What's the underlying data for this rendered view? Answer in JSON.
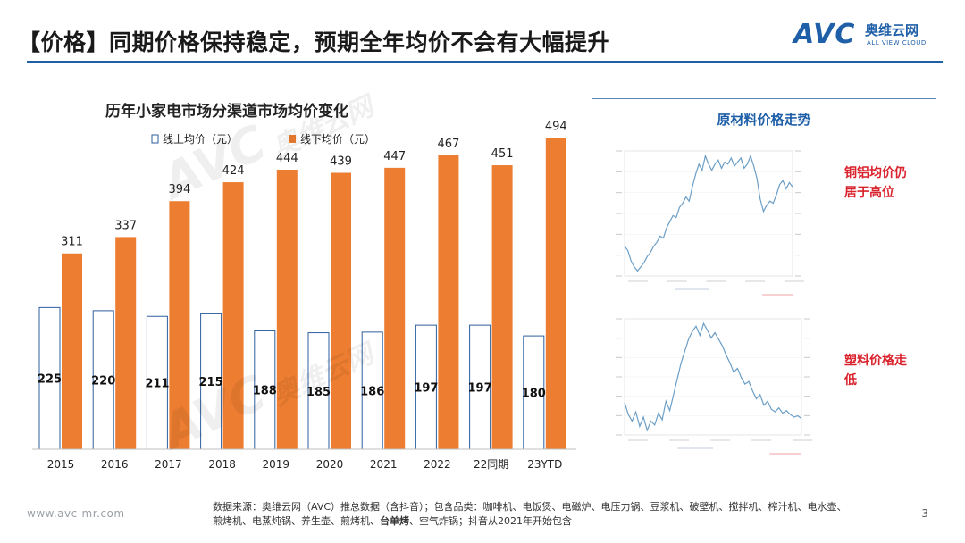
{
  "header": {
    "title": "【价格】同期价格保持稳定，预期全年均价不会有大幅提升"
  },
  "logo": {
    "mark": "AVC",
    "name_cn": "奥维云网",
    "name_en": "ALL VIEW CLOUD"
  },
  "watermark": {
    "mark": "AVC",
    "name_cn": "奥维云网",
    "name_en": "ALL VIEW CLOUD"
  },
  "chart_data": [
    {
      "type": "bar",
      "title": "历年小家电市场分渠道市场均价变化",
      "categories": [
        "2015",
        "2016",
        "2017",
        "2018",
        "2019",
        "2020",
        "2021",
        "2022",
        "22同期",
        "23YTD"
      ],
      "series": [
        {
          "name": "线上均价（元）",
          "values": [
            225,
            220,
            211,
            215,
            188,
            185,
            186,
            197,
            197,
            180
          ],
          "color": "#ffffff",
          "stroke": "#2e5f9e"
        },
        {
          "name": "线下均价（元）",
          "values": [
            311,
            337,
            394,
            424,
            444,
            439,
            447,
            467,
            451,
            494
          ],
          "color": "#ed7d31"
        }
      ],
      "legend": "top-left",
      "grid": false,
      "ylim": [
        0,
        600
      ]
    },
    {
      "type": "line",
      "title": "原材料价格走势",
      "note": "铜铝均价仍居于高位",
      "series": [
        {
          "name": "",
          "color": "#6b9ec6",
          "values": [
            5.9,
            5.7,
            5.2,
            4.9,
            4.7,
            4.9,
            5.1,
            5.4,
            5.6,
            5.9,
            6.1,
            6.4,
            6.3,
            6.8,
            7.1,
            7.4,
            7.3,
            7.8,
            8.0,
            8.3,
            8.1,
            8.8,
            9.4,
            9.9,
            9.6,
            10.3,
            9.9,
            9.6,
            9.9,
            10.1,
            9.7,
            10.0,
            9.9,
            10.2,
            9.8,
            10.0,
            10.2,
            9.7,
            9.9,
            10.3,
            9.8,
            9.2,
            8.2,
            7.6,
            7.9,
            8.1,
            8.0,
            8.4,
            8.9,
            9.1,
            8.7,
            9.0,
            8.8
          ]
        }
      ]
    },
    {
      "type": "line",
      "title": "",
      "note": "塑料价格走低",
      "series": [
        {
          "name": "",
          "color": "#6b9ec6",
          "values": [
            12.3,
            11.4,
            10.9,
            11.6,
            10.5,
            11.2,
            10.2,
            10.9,
            10.6,
            11.5,
            11.0,
            12.4,
            11.7,
            12.9,
            14.1,
            15.3,
            16.2,
            17.1,
            17.7,
            18.1,
            17.4,
            18.3,
            17.8,
            17.2,
            17.6,
            17.1,
            16.6,
            15.9,
            15.3,
            14.6,
            14.9,
            14.2,
            13.7,
            13.9,
            13.2,
            12.6,
            12.9,
            12.1,
            12.4,
            11.8,
            11.6,
            11.9,
            11.5,
            11.7,
            11.4,
            11.2,
            11.3,
            11.1
          ]
        }
      ]
    }
  ],
  "panel": {
    "title": "原材料价格走势",
    "note_top": [
      "铜铝均价仍",
      "居于高位"
    ],
    "note_bottom": [
      "塑料价格走",
      "低"
    ]
  },
  "footer": {
    "source_line1": "数据来源：奥维云网（AVC）推总数据（含抖音）；包含品类：咖啡机、电饭煲、电磁炉、电压力锅、豆浆机、破壁机、搅拌机、榨汁机、电水壶、",
    "source_line2a": "煎烤机、电蒸炖锅、养生壶、煎烤机、",
    "source_line2b": "台单烤",
    "source_line2c": "、空气炸锅；抖音从2021年开始包含",
    "url": "www.avc-mr.com",
    "page": "-3-"
  }
}
